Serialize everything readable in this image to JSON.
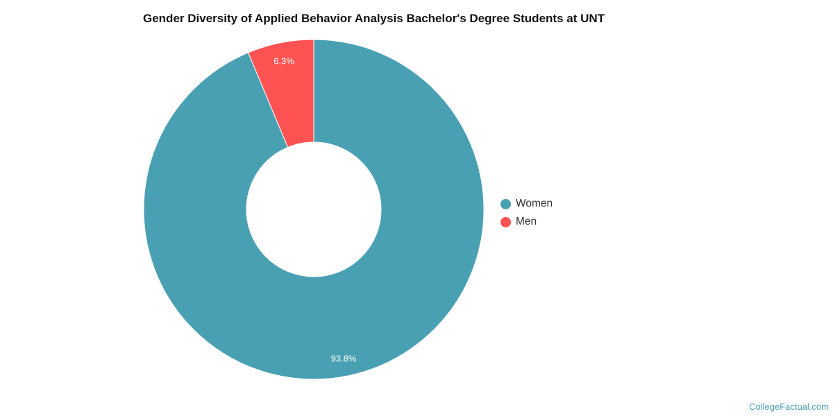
{
  "chart_data": {
    "type": "pie",
    "variant": "donut",
    "title": "Gender Diversity of Applied Behavior Analysis Bachelor's Degree Students at UNT",
    "slices": [
      {
        "name": "Women",
        "value": 93.8,
        "label": "93.8%",
        "color": "#4aa0b3"
      },
      {
        "name": "Men",
        "value": 6.3,
        "label": "6.3%",
        "color": "#ff5252"
      }
    ],
    "legend_position": "right"
  },
  "watermark": "CollegeFactual.com"
}
